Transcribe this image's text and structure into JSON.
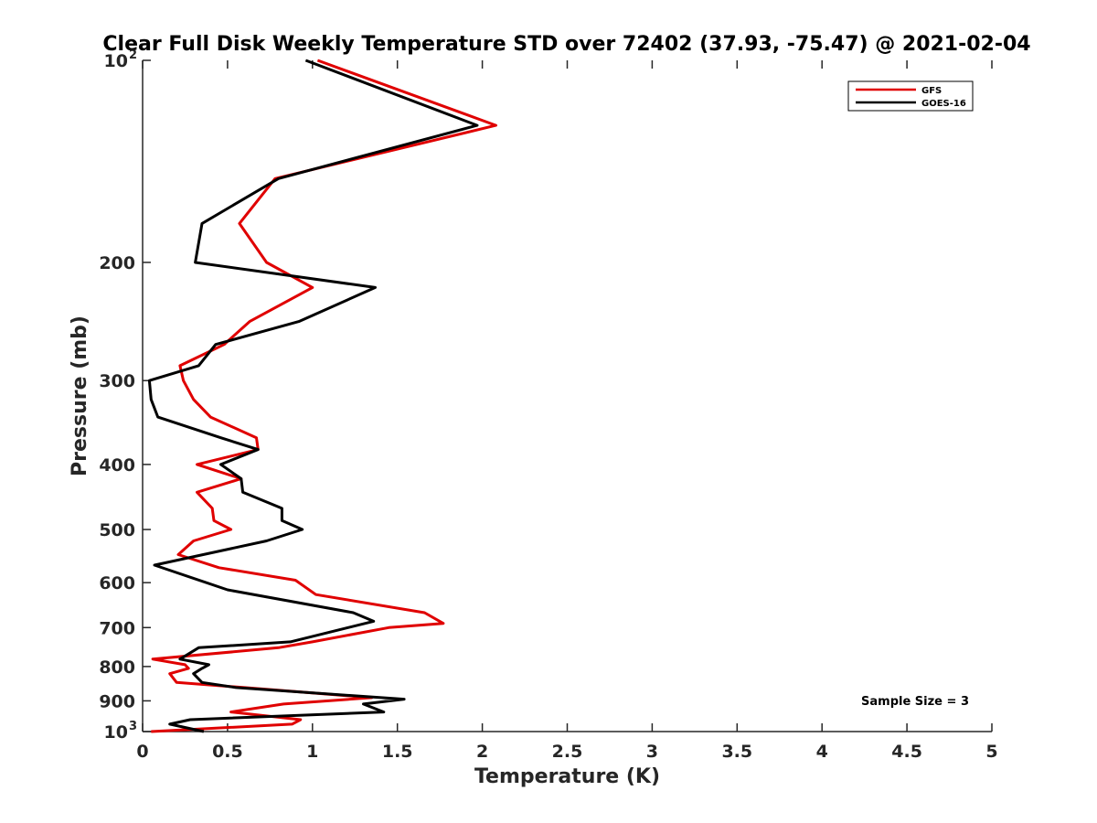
{
  "chart_data": {
    "type": "line",
    "title": "Clear Full Disk Weekly Temperature STD over 72402 (37.93, -75.47) @ 2021-02-04",
    "xlabel": "Temperature (K)",
    "ylabel": "Pressure (mb)",
    "xlim": [
      0,
      5
    ],
    "ylim": [
      100,
      1000
    ],
    "yscale": "log",
    "yreversed": true,
    "x_ticks": [
      "0",
      "0.5",
      "1",
      "1.5",
      "2",
      "2.5",
      "3",
      "3.5",
      "4",
      "4.5",
      "5"
    ],
    "y_ticks": [
      {
        "value": 100,
        "label": "10",
        "sup": "2"
      },
      {
        "value": 200,
        "label": "200",
        "sup": ""
      },
      {
        "value": 300,
        "label": "300",
        "sup": ""
      },
      {
        "value": 400,
        "label": "400",
        "sup": ""
      },
      {
        "value": 500,
        "label": "500",
        "sup": ""
      },
      {
        "value": 600,
        "label": "600",
        "sup": ""
      },
      {
        "value": 700,
        "label": "700",
        "sup": ""
      },
      {
        "value": 800,
        "label": "800",
        "sup": ""
      },
      {
        "value": 900,
        "label": "900",
        "sup": ""
      },
      {
        "value": 1000,
        "label": "10",
        "sup": "3"
      }
    ],
    "grid": false,
    "legend_position": "top-right",
    "series": [
      {
        "name": "GFS",
        "color": "#e00000",
        "points": [
          [
            1.03,
            100
          ],
          [
            2.08,
            125
          ],
          [
            0.78,
            150
          ],
          [
            0.57,
            175
          ],
          [
            0.73,
            200
          ],
          [
            1.0,
            218
          ],
          [
            0.63,
            245
          ],
          [
            0.48,
            265
          ],
          [
            0.22,
            285
          ],
          [
            0.24,
            300
          ],
          [
            0.3,
            320
          ],
          [
            0.4,
            340
          ],
          [
            0.67,
            365
          ],
          [
            0.68,
            380
          ],
          [
            0.32,
            400
          ],
          [
            0.58,
            420
          ],
          [
            0.32,
            440
          ],
          [
            0.41,
            465
          ],
          [
            0.42,
            485
          ],
          [
            0.52,
            500
          ],
          [
            0.3,
            520
          ],
          [
            0.21,
            545
          ],
          [
            0.45,
            570
          ],
          [
            0.9,
            595
          ],
          [
            1.02,
            625
          ],
          [
            1.66,
            665
          ],
          [
            1.77,
            690
          ],
          [
            1.45,
            700
          ],
          [
            1.0,
            735
          ],
          [
            0.8,
            750
          ],
          [
            0.06,
            780
          ],
          [
            0.25,
            795
          ],
          [
            0.27,
            805
          ],
          [
            0.16,
            820
          ],
          [
            0.2,
            845
          ],
          [
            0.6,
            860
          ],
          [
            1.35,
            890
          ],
          [
            0.83,
            910
          ],
          [
            0.52,
            935
          ],
          [
            0.93,
            960
          ],
          [
            0.88,
            975
          ],
          [
            0.05,
            1000
          ]
        ]
      },
      {
        "name": "GOES-16",
        "color": "#000000",
        "points": [
          [
            0.96,
            100
          ],
          [
            1.97,
            125
          ],
          [
            0.8,
            150
          ],
          [
            0.35,
            175
          ],
          [
            0.31,
            200
          ],
          [
            1.37,
            218
          ],
          [
            0.92,
            245
          ],
          [
            0.43,
            265
          ],
          [
            0.33,
            285
          ],
          [
            0.04,
            300
          ],
          [
            0.05,
            320
          ],
          [
            0.09,
            340
          ],
          [
            0.46,
            365
          ],
          [
            0.68,
            380
          ],
          [
            0.46,
            400
          ],
          [
            0.58,
            420
          ],
          [
            0.59,
            440
          ],
          [
            0.82,
            465
          ],
          [
            0.82,
            485
          ],
          [
            0.94,
            500
          ],
          [
            0.73,
            520
          ],
          [
            0.07,
            565
          ],
          [
            0.5,
            615
          ],
          [
            1.24,
            665
          ],
          [
            1.36,
            685
          ],
          [
            1.21,
            700
          ],
          [
            0.87,
            735
          ],
          [
            0.33,
            750
          ],
          [
            0.22,
            780
          ],
          [
            0.39,
            795
          ],
          [
            0.35,
            805
          ],
          [
            0.3,
            820
          ],
          [
            0.35,
            845
          ],
          [
            0.55,
            860
          ],
          [
            1.54,
            895
          ],
          [
            1.3,
            910
          ],
          [
            1.42,
            935
          ],
          [
            0.28,
            960
          ],
          [
            0.16,
            975
          ],
          [
            0.36,
            1000
          ]
        ]
      }
    ],
    "annotation": "Sample Size = 3"
  }
}
